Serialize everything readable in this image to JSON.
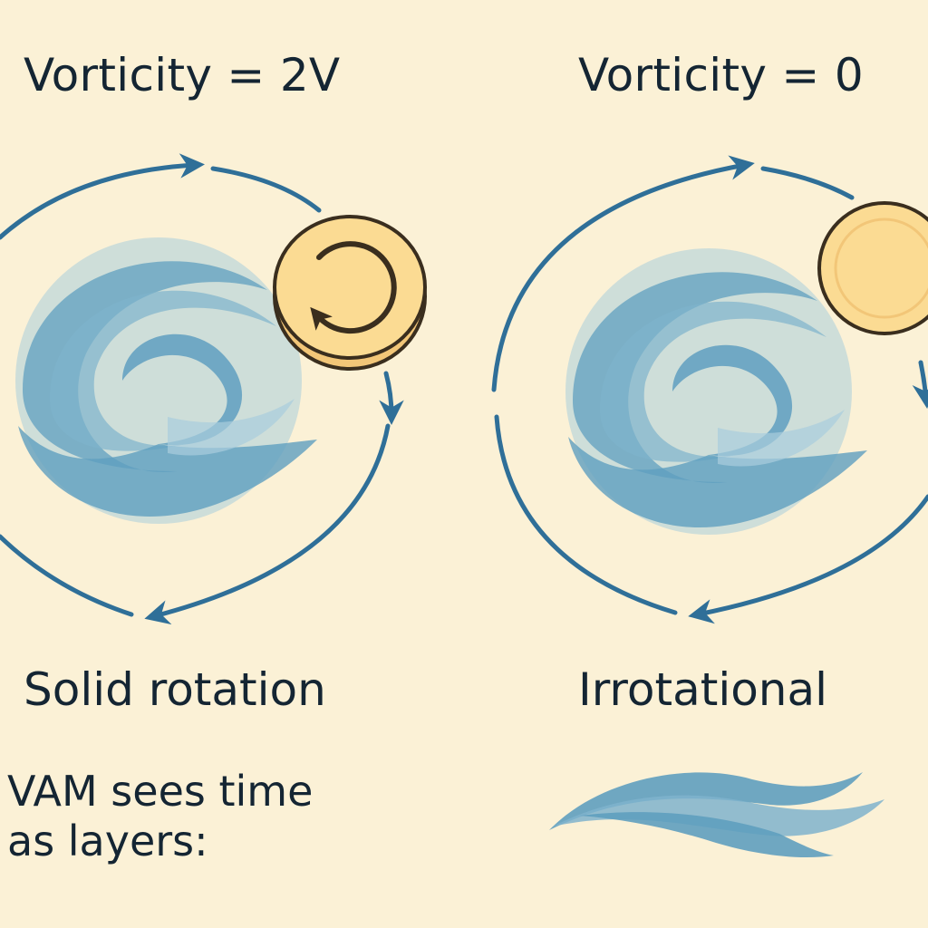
{
  "colors": {
    "background": "#fbf1d6",
    "text": "#142533",
    "arrow": "#2f6f98",
    "swirl_dark": "#5f9fbf",
    "swirl_light": "#a9cddd",
    "coin_fill": "#fbdb93",
    "coin_edge": "#3a2e1e"
  },
  "panels": {
    "left": {
      "title": "Vorticity = 2V",
      "caption": "Solid rotation",
      "marker_icon": "rotation-arrow-icon"
    },
    "right": {
      "title": "Vorticity = 0",
      "caption": "Irrotational",
      "marker_icon": "plain-disc-icon"
    }
  },
  "note": {
    "text": "VAM sees time as layers:",
    "illustration_icon": "wave-layers-icon"
  }
}
